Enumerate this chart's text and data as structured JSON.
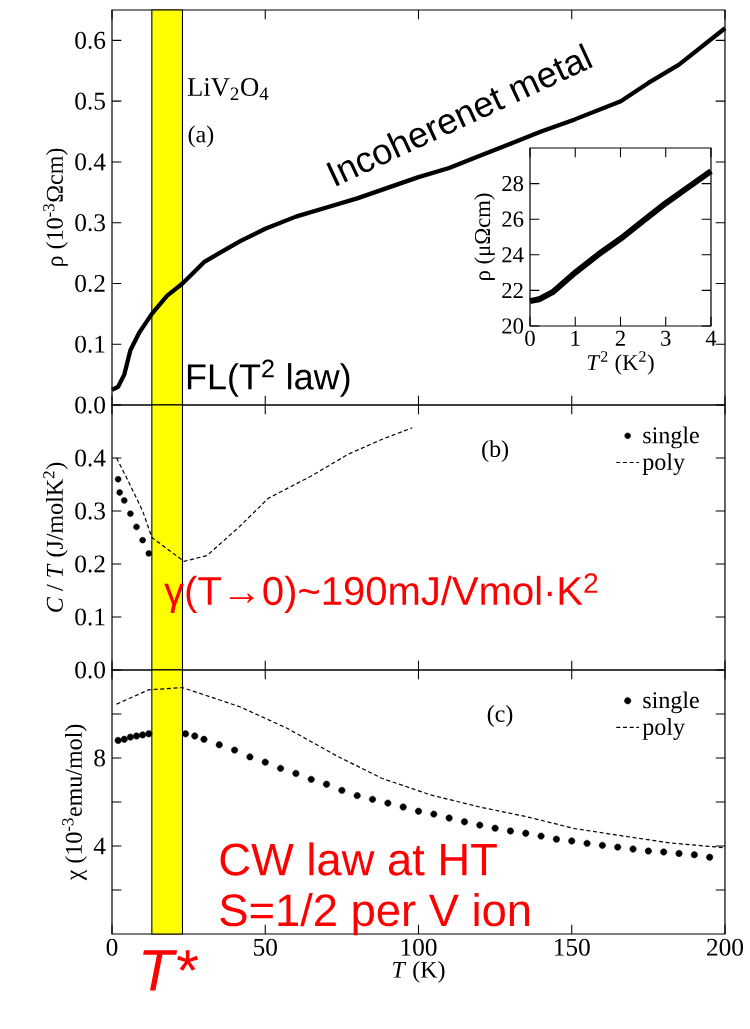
{
  "chart_data": [
    {
      "type": "line",
      "ylabel": "ρ (10$^{-3}$Ωcm)",
      "xlim": [
        0,
        200
      ],
      "xticks": [
        0,
        50,
        100,
        150,
        200
      ],
      "ylim": [
        0,
        0.65
      ],
      "yticks": [
        {
          "value": 0,
          "label": "0.0"
        },
        0.1,
        0.2,
        0.3,
        0.4,
        0.5,
        0.6
      ],
      "tick_labels": "y",
      "annotations": [
        "LiV$_{2}$O$_{4}$",
        "(a)",
        "Incoherenet metal",
        "FL(T$^{2}$ law)"
      ],
      "bands": [
        {
          "axis": "x",
          "from": 13,
          "to": 23,
          "color": "#ffff00"
        }
      ],
      "series": [
        {
          "color": "#000000",
          "x": [
            0,
            2,
            4,
            6,
            9,
            13,
            18,
            23,
            30,
            35,
            42,
            50,
            60,
            70,
            80,
            88,
            100,
            110,
            119,
            130,
            140,
            151,
            166,
            175,
            185,
            200
          ],
          "values": [
            0.025,
            0.03,
            0.05,
            0.09,
            0.12,
            0.15,
            0.18,
            0.2,
            0.235,
            0.25,
            0.27,
            0.29,
            0.31,
            0.325,
            0.34,
            0.354,
            0.375,
            0.39,
            0.408,
            0.43,
            0.45,
            0.47,
            0.5,
            0.53,
            0.56,
            0.62
          ]
        }
      ]
    },
    {
      "type": "line",
      "xlabel": "*T*$^{2}$ (K$^{2}$)",
      "ylabel": "ρ (μΩcm)",
      "xlim": [
        0,
        4
      ],
      "xticks": [
        0,
        1,
        2,
        3,
        4
      ],
      "ylim": [
        20,
        30
      ],
      "yticks": [
        20,
        22,
        24,
        26,
        28
      ],
      "series": [
        {
          "color": "#000000",
          "x": [
            0,
            0.2,
            0.5,
            1,
            1.5,
            2,
            2.5,
            3,
            3.5,
            4
          ],
          "values": [
            21.4,
            21.5,
            21.9,
            23.0,
            24.0,
            24.9,
            25.9,
            26.9,
            27.8,
            28.7
          ]
        }
      ]
    },
    {
      "type": "line",
      "ylabel": "*C* / *T* (J/molK$^{2}$)",
      "xlim": [
        0,
        200
      ],
      "xticks": [
        0,
        50,
        100,
        150,
        200
      ],
      "ylim": [
        0,
        0.5
      ],
      "yticks": [
        {
          "value": 0,
          "label": "0.0"
        },
        0.1,
        0.2,
        0.3,
        0.4
      ],
      "tick_labels": "y",
      "legend": "top right",
      "annotations": [
        "(b)",
        "γ(T→0)~190mJ/Vmol·K$^{2}$"
      ],
      "bands": [
        {
          "axis": "x",
          "from": 13,
          "to": 23,
          "color": "#ffff00"
        }
      ],
      "series": [
        {
          "name": "single",
          "type": "scatter",
          "marker": "circle",
          "color": "#000000",
          "x": [
            2,
            2.5,
            4,
            6,
            8,
            10,
            12
          ],
          "values": [
            0.36,
            0.335,
            0.32,
            0.295,
            0.27,
            0.245,
            0.22
          ]
        },
        {
          "name": "poly",
          "type": "line",
          "line_style": "dashed",
          "color": "#000000",
          "x": [
            1.5,
            5,
            10,
            13,
            23.5,
            31,
            41.5,
            51,
            65,
            77,
            88,
            98
          ],
          "values": [
            0.4,
            0.36,
            0.3,
            0.25,
            0.205,
            0.216,
            0.27,
            0.324,
            0.366,
            0.407,
            0.435,
            0.457
          ]
        }
      ]
    },
    {
      "type": "line",
      "xlabel": "*T* (K)",
      "ylabel": "χ (10$^{-3}$emu/mol)",
      "xlim": [
        0,
        200
      ],
      "xticks": [
        0,
        50,
        100,
        150,
        200
      ],
      "ylim": [
        0,
        12
      ],
      "yticks": [
        {
          "value": 2,
          "label": null
        },
        4,
        {
          "value": 6,
          "label": null
        },
        8,
        {
          "value": 10,
          "label": null
        }
      ],
      "legend": "top right",
      "annotations": [
        "(c)",
        "CW law at HT",
        "S=1/2 per V ion"
      ],
      "bands": [
        {
          "axis": "x",
          "from": 13,
          "to": 23,
          "color": "#ffff00",
          "label": "T*"
        }
      ],
      "series": [
        {
          "name": "single",
          "type": "scatter",
          "marker": "circle",
          "color": "#000000",
          "x": [
            2,
            4,
            6,
            8,
            10,
            12,
            24,
            27,
            30,
            35,
            40,
            45,
            50,
            55,
            60,
            65,
            70,
            75,
            80,
            85,
            90,
            95,
            100,
            105,
            110,
            115,
            120,
            125,
            130,
            135,
            140,
            145,
            150,
            155,
            160,
            165,
            170,
            175,
            180,
            185,
            190,
            195
          ],
          "values": [
            8.8,
            8.85,
            8.95,
            9.0,
            9.05,
            9.1,
            9.1,
            9.0,
            8.85,
            8.6,
            8.36,
            8.05,
            7.81,
            7.53,
            7.3,
            7.03,
            6.81,
            6.53,
            6.29,
            6.12,
            5.95,
            5.77,
            5.58,
            5.45,
            5.27,
            5.1,
            4.95,
            4.81,
            4.68,
            4.58,
            4.45,
            4.31,
            4.23,
            4.12,
            4.03,
            3.95,
            3.86,
            3.77,
            3.73,
            3.66,
            3.6,
            3.49
          ]
        },
        {
          "name": "poly",
          "type": "line",
          "line_style": "dashed",
          "color": "#000000",
          "x": [
            1.5,
            12,
            23,
            41.5,
            57,
            73,
            88,
            104,
            120,
            135,
            151,
            166,
            182,
            200
          ],
          "values": [
            10.45,
            11.1,
            11.2,
            10.34,
            9.36,
            8.12,
            7.08,
            6.32,
            5.77,
            5.34,
            4.79,
            4.47,
            4.14,
            3.92
          ]
        }
      ]
    }
  ]
}
